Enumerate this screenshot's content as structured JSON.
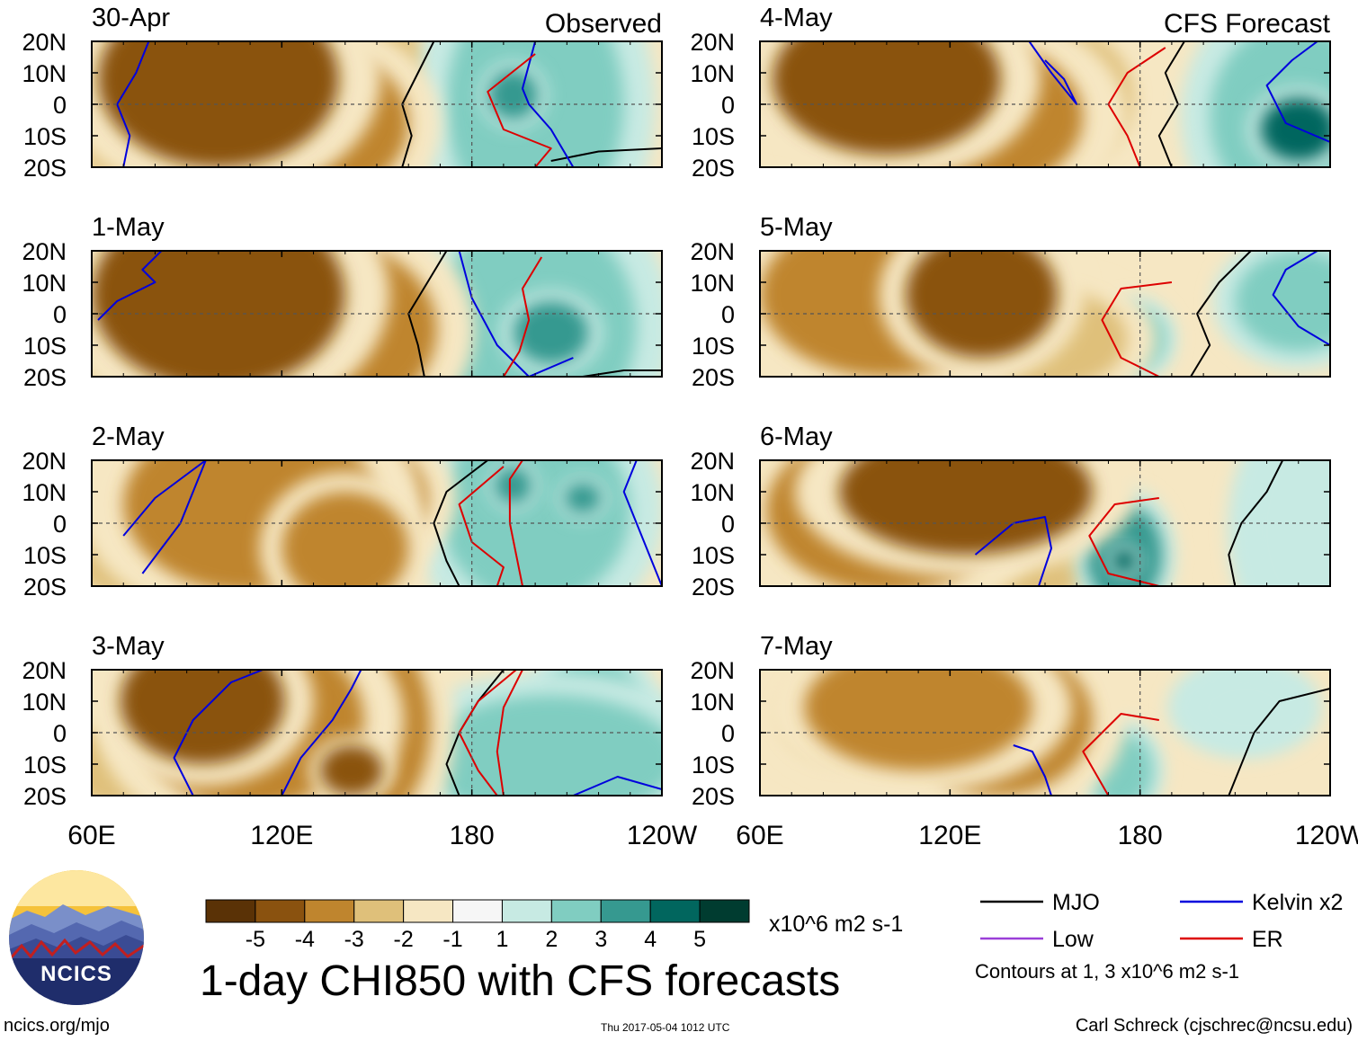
{
  "chart_data": {
    "type": "heatmap",
    "title": "1-day CHI850 with CFS forecasts",
    "units": "x10^6 m2 s-1",
    "observed_label": "Observed",
    "forecast_label": "CFS Forecast",
    "y_ticks": [
      "20N",
      "10N",
      "0",
      "10S",
      "20S"
    ],
    "x_ticks": [
      "60E",
      "120E",
      "180",
      "120W"
    ],
    "lon_range": [
      60,
      240
    ],
    "lat_range": [
      -20,
      20
    ],
    "color_levels": [
      -5,
      -4,
      -3,
      -2,
      -1,
      1,
      2,
      3,
      4,
      5
    ],
    "color_scale": [
      "#5a3206",
      "#8a520f",
      "#bf852e",
      "#dfc07a",
      "#f6e7c3",
      "#f6f6f6",
      "#c7eae3",
      "#80cdc1",
      "#369990",
      "#01665e",
      "#003c30"
    ],
    "panels": [
      {
        "date": "30-Apr",
        "column": "Observed",
        "blobs": [
          {
            "lon": 100,
            "lat": 8,
            "value": -4.7,
            "w": 38,
            "h": 28
          },
          {
            "lon": 130,
            "lat": -6,
            "value": -3.4,
            "w": 30,
            "h": 24
          },
          {
            "lon": 75,
            "lat": -10,
            "value": -2.5,
            "w": 20,
            "h": 16
          },
          {
            "lon": 150,
            "lat": 4,
            "value": -2.2,
            "w": 20,
            "h": 22
          },
          {
            "lon": 200,
            "lat": 0,
            "value": 2.3,
            "w": 28,
            "h": 40
          },
          {
            "lon": 193,
            "lat": 3,
            "value": 3.2,
            "w": 8,
            "h": 8
          }
        ],
        "contours": [
          {
            "type": "MJO",
            "lon": [
              168,
              163,
              158,
              161,
              158
            ],
            "lat": [
              20,
              10,
              0,
              -10,
              -20
            ]
          },
          {
            "type": "MJO",
            "lon": [
              205,
              220,
              240
            ],
            "lat": [
              -18,
              -15,
              -14
            ]
          },
          {
            "type": "Kelvin",
            "lon": [
              78,
              74,
              68,
              72,
              70
            ],
            "lat": [
              20,
              10,
              0,
              -10,
              -20
            ]
          },
          {
            "type": "Kelvin",
            "lon": [
              200,
              196,
              198,
              205,
              212
            ],
            "lat": [
              20,
              5,
              0,
              -8,
              -20
            ]
          },
          {
            "type": "ER",
            "lon": [
              200,
              185,
              190,
              205,
              200
            ],
            "lat": [
              16,
              4,
              -8,
              -14,
              -20
            ]
          }
        ]
      },
      {
        "date": "1-May",
        "column": "Observed",
        "blobs": [
          {
            "lon": 100,
            "lat": 6,
            "value": -4.2,
            "w": 40,
            "h": 30
          },
          {
            "lon": 135,
            "lat": -5,
            "value": -3.3,
            "w": 34,
            "h": 28
          },
          {
            "lon": 70,
            "lat": -12,
            "value": -2.2,
            "w": 18,
            "h": 14
          },
          {
            "lon": 200,
            "lat": -4,
            "value": 2.6,
            "w": 32,
            "h": 36
          },
          {
            "lon": 205,
            "lat": -6,
            "value": 3.3,
            "w": 12,
            "h": 10
          }
        ],
        "contours": [
          {
            "type": "MJO",
            "lon": [
              172,
              166,
              160,
              163,
              165
            ],
            "lat": [
              20,
              10,
              0,
              -10,
              -20
            ]
          },
          {
            "type": "MJO",
            "lon": [
              215,
              228,
              240
            ],
            "lat": [
              -20,
              -18,
              -18
            ]
          },
          {
            "type": "Kelvin",
            "lon": [
              62,
              68,
              80,
              76,
              82
            ],
            "lat": [
              -2,
              4,
              10,
              14,
              20
            ]
          },
          {
            "type": "Kelvin",
            "lon": [
              176,
              180,
              188,
              198,
              212
            ],
            "lat": [
              20,
              5,
              -10,
              -20,
              -14
            ]
          },
          {
            "type": "ER",
            "lon": [
              202,
              196,
              198,
              195,
              190
            ],
            "lat": [
              18,
              8,
              -2,
              -12,
              -20
            ]
          }
        ]
      },
      {
        "date": "2-May",
        "column": "Observed",
        "blobs": [
          {
            "lon": 110,
            "lat": 6,
            "value": -3.3,
            "w": 40,
            "h": 28
          },
          {
            "lon": 140,
            "lat": 8,
            "value": -3.2,
            "w": 26,
            "h": 20
          },
          {
            "lon": 140,
            "lat": -8,
            "value": -3.3,
            "w": 20,
            "h": 18
          },
          {
            "lon": 80,
            "lat": -10,
            "value": -2.2,
            "w": 26,
            "h": 16
          },
          {
            "lon": 200,
            "lat": 4,
            "value": 2.4,
            "w": 30,
            "h": 30
          },
          {
            "lon": 193,
            "lat": 12,
            "value": 3.6,
            "w": 6,
            "h": 6
          },
          {
            "lon": 215,
            "lat": 8,
            "value": 3.2,
            "w": 6,
            "h": 5
          }
        ],
        "contours": [
          {
            "type": "MJO",
            "lon": [
              185,
              172,
              168,
              172,
              176
            ],
            "lat": [
              20,
              10,
              0,
              -12,
              -20
            ]
          },
          {
            "type": "Kelvin",
            "lon": [
              70,
              80,
              96,
              88,
              76
            ],
            "lat": [
              -4,
              8,
              20,
              0,
              -16
            ]
          },
          {
            "type": "Kelvin",
            "lon": [
              232,
              228,
              232,
              240
            ],
            "lat": [
              20,
              10,
              0,
              -20
            ]
          },
          {
            "type": "ER",
            "lon": [
              190,
              176,
              180,
              190,
              188
            ],
            "lat": [
              18,
              6,
              -6,
              -14,
              -20
            ]
          },
          {
            "type": "ER",
            "lon": [
              196,
              192,
              192,
              196
            ],
            "lat": [
              20,
              14,
              0,
              -20
            ]
          }
        ]
      },
      {
        "date": "3-May",
        "column": "Observed",
        "blobs": [
          {
            "lon": 95,
            "lat": 10,
            "value": -4.6,
            "w": 26,
            "h": 20
          },
          {
            "lon": 110,
            "lat": 4,
            "value": -3.6,
            "w": 36,
            "h": 28
          },
          {
            "lon": 145,
            "lat": 2,
            "value": -3.4,
            "w": 22,
            "h": 32
          },
          {
            "lon": 142,
            "lat": -12,
            "value": -4.5,
            "w": 10,
            "h": 8
          },
          {
            "lon": 70,
            "lat": -10,
            "value": -2.6,
            "w": 18,
            "h": 14
          },
          {
            "lon": 205,
            "lat": -8,
            "value": 2.6,
            "w": 40,
            "h": 20
          },
          {
            "lon": 218,
            "lat": 6,
            "value": 2.1,
            "w": 16,
            "h": 18
          }
        ],
        "contours": [
          {
            "type": "MJO",
            "lon": [
              190,
              182,
              176,
              172,
              176
            ],
            "lat": [
              20,
              10,
              0,
              -10,
              -20
            ]
          },
          {
            "type": "Kelvin",
            "lon": [
              92,
              86,
              92,
              104,
              114
            ],
            "lat": [
              -20,
              -8,
              4,
              16,
              20
            ]
          },
          {
            "type": "Kelvin",
            "lon": [
              120,
              126,
              136,
              142,
              145
            ],
            "lat": [
              -20,
              -8,
              4,
              14,
              20
            ]
          },
          {
            "type": "Kelvin",
            "lon": [
              212,
              226,
              240
            ],
            "lat": [
              -20,
              -14,
              -18
            ]
          },
          {
            "type": "ER",
            "lon": [
              194,
              182,
              176,
              182,
              188
            ],
            "lat": [
              20,
              10,
              0,
              -12,
              -20
            ]
          },
          {
            "type": "ER",
            "lon": [
              196,
              190,
              188,
              190
            ],
            "lat": [
              20,
              8,
              -6,
              -20
            ]
          }
        ]
      },
      {
        "date": "4-May",
        "column": "CFS Forecast",
        "blobs": [
          {
            "lon": 100,
            "lat": 8,
            "value": -4.6,
            "w": 36,
            "h": 24
          },
          {
            "lon": 122,
            "lat": -4,
            "value": -3.3,
            "w": 40,
            "h": 26
          },
          {
            "lon": 150,
            "lat": 2,
            "value": -2.6,
            "w": 28,
            "h": 24
          },
          {
            "lon": 75,
            "lat": 10,
            "value": -2.6,
            "w": 18,
            "h": 16
          },
          {
            "lon": 228,
            "lat": -4,
            "value": 3.0,
            "w": 26,
            "h": 30
          },
          {
            "lon": 230,
            "lat": -8,
            "value": 4.2,
            "w": 12,
            "h": 10
          }
        ],
        "contours": [
          {
            "type": "MJO",
            "lon": [
              194,
              188,
              192,
              186,
              190
            ],
            "lat": [
              20,
              10,
              0,
              -10,
              -20
            ]
          },
          {
            "type": "Kelvin",
            "lon": [
              240,
              226,
              220,
              228,
              236
            ],
            "lat": [
              -12,
              -6,
              6,
              14,
              20
            ]
          },
          {
            "type": "Kelvin",
            "lon": [
              145,
              152,
              160,
              156,
              150
            ],
            "lat": [
              20,
              10,
              0,
              8,
              14
            ]
          },
          {
            "type": "ER",
            "lon": [
              188,
              176,
              170,
              176,
              180
            ],
            "lat": [
              18,
              10,
              0,
              -10,
              -20
            ]
          }
        ]
      },
      {
        "date": "5-May",
        "column": "CFS Forecast",
        "blobs": [
          {
            "lon": 130,
            "lat": 6,
            "value": -4.2,
            "w": 24,
            "h": 20
          },
          {
            "lon": 100,
            "lat": 6,
            "value": -3.0,
            "w": 40,
            "h": 26
          },
          {
            "lon": 150,
            "lat": -8,
            "value": -2.5,
            "w": 26,
            "h": 16
          },
          {
            "lon": 178,
            "lat": -8,
            "value": 2.4,
            "w": 10,
            "h": 10
          },
          {
            "lon": 230,
            "lat": 4,
            "value": 2.8,
            "w": 20,
            "h": 16
          }
        ],
        "contours": [
          {
            "type": "MJO",
            "lon": [
              215,
              205,
              198,
              202,
              196
            ],
            "lat": [
              20,
              10,
              0,
              -10,
              -20
            ]
          },
          {
            "type": "Kelvin",
            "lon": [
              240,
              230,
              222,
              226,
              236
            ],
            "lat": [
              -10,
              -4,
              6,
              14,
              20
            ]
          },
          {
            "type": "ER",
            "lon": [
              190,
              174,
              168,
              174,
              186
            ],
            "lat": [
              10,
              8,
              -2,
              -14,
              -20
            ]
          }
        ]
      },
      {
        "date": "6-May",
        "column": "CFS Forecast",
        "blobs": [
          {
            "lon": 125,
            "lat": 10,
            "value": -4.3,
            "w": 40,
            "h": 20
          },
          {
            "lon": 100,
            "lat": 4,
            "value": -3.0,
            "w": 38,
            "h": 26
          },
          {
            "lon": 148,
            "lat": -4,
            "value": -2.4,
            "w": 24,
            "h": 20
          },
          {
            "lon": 175,
            "lat": -10,
            "value": 3.1,
            "w": 12,
            "h": 16
          },
          {
            "lon": 175,
            "lat": -12,
            "value": 4.5,
            "w": 4,
            "h": 4
          },
          {
            "lon": 232,
            "lat": -2,
            "value": 2.0,
            "w": 18,
            "h": 30
          }
        ],
        "contours": [
          {
            "type": "MJO",
            "lon": [
              225,
              220,
              212,
              208,
              210
            ],
            "lat": [
              20,
              10,
              0,
              -10,
              -20
            ]
          },
          {
            "type": "Kelvin",
            "lon": [
              128,
              140,
              150,
              152,
              148
            ],
            "lat": [
              -10,
              0,
              2,
              -8,
              -20
            ]
          },
          {
            "type": "ER",
            "lon": [
              186,
              172,
              164,
              170,
              186
            ],
            "lat": [
              8,
              6,
              -4,
              -16,
              -20
            ]
          }
        ]
      },
      {
        "date": "7-May",
        "column": "CFS Forecast",
        "blobs": [
          {
            "lon": 110,
            "lat": 8,
            "value": -3.5,
            "w": 36,
            "h": 20
          },
          {
            "lon": 135,
            "lat": 4,
            "value": -3.2,
            "w": 30,
            "h": 24
          },
          {
            "lon": 88,
            "lat": 6,
            "value": -2.6,
            "w": 22,
            "h": 16
          },
          {
            "lon": 174,
            "lat": -12,
            "value": 2.6,
            "w": 10,
            "h": 12
          },
          {
            "lon": 213,
            "lat": 8,
            "value": 2.0,
            "w": 18,
            "h": 12
          }
        ],
        "contours": [
          {
            "type": "MJO",
            "lon": [
              240,
              224,
              216,
              212,
              208
            ],
            "lat": [
              14,
              10,
              0,
              -10,
              -20
            ]
          },
          {
            "type": "Kelvin",
            "lon": [
              140,
              146,
              150,
              152
            ],
            "lat": [
              -4,
              -6,
              -14,
              -20
            ]
          },
          {
            "type": "ER",
            "lon": [
              186,
              174,
              162,
              170,
              186
            ],
            "lat": [
              4,
              6,
              -6,
              -20,
              -20
            ]
          }
        ]
      }
    ],
    "legend": [
      {
        "name": "MJO",
        "color": "#000000"
      },
      {
        "name": "Kelvin x2",
        "color": "#0000dd"
      },
      {
        "name": "Low",
        "color": "#9b3fd8"
      },
      {
        "name": "ER",
        "color": "#dd0000"
      }
    ],
    "contours_note": "Contours at 1, 3 x10^6 m2 s-1"
  },
  "logo": {
    "text": "NCICS"
  },
  "footer": {
    "site": "ncics.org/mjo",
    "timestamp": "Thu 2017-05-04 1012 UTC",
    "credit": "Carl Schreck (cjschrec@ncsu.edu)"
  }
}
